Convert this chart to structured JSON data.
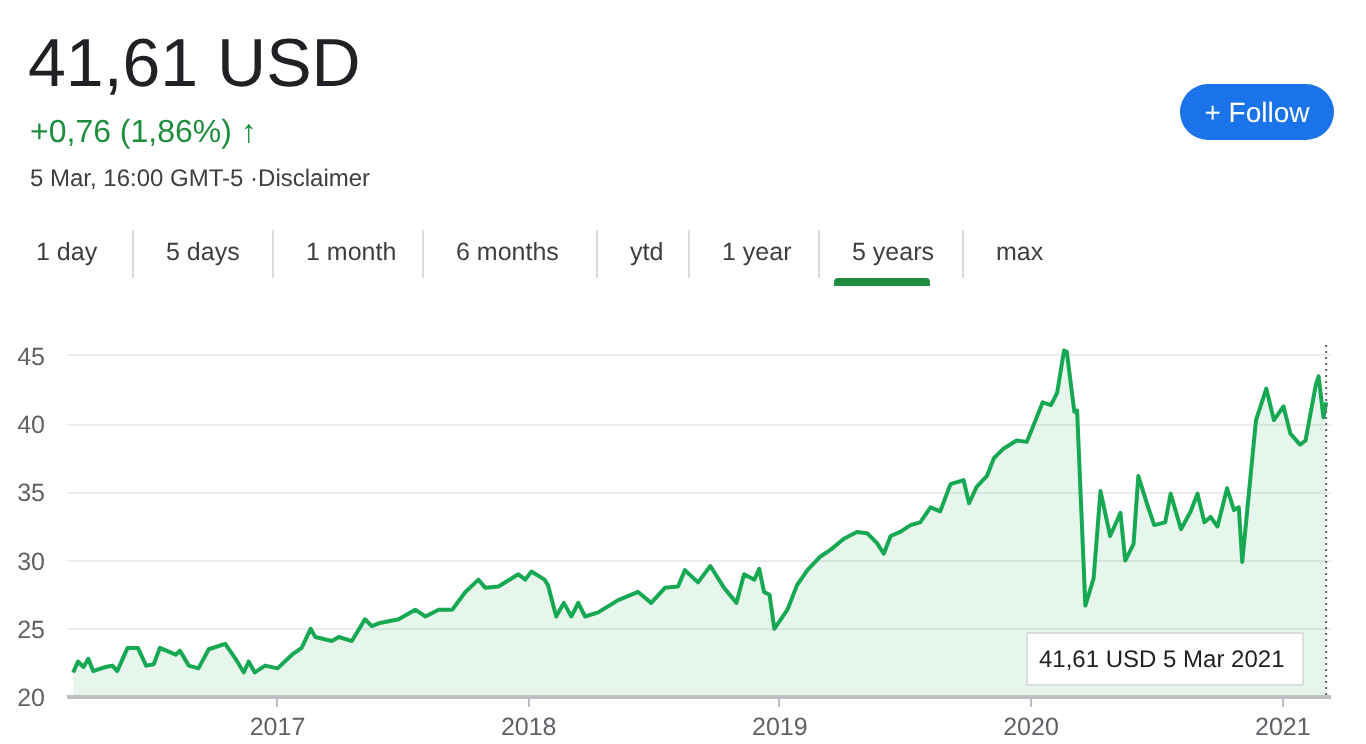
{
  "chart_data": {
    "type": "area",
    "title": "41,61 USD",
    "subtitle": "+0,76 (1,86%) ↑",
    "annotations": [
      "5 Mar, 16:00 GMT-5 ·Disclaimer",
      "+ Follow",
      "1 day",
      "5 days",
      "1 month",
      "6 months",
      "ytd",
      "1 year",
      "5 years",
      "max",
      "41,61 USD  5 Mar 2021"
    ],
    "x": [
      "2016-03-10",
      "2016-03-17",
      "2016-03-25",
      "2016-04-01",
      "2016-04-08",
      "2016-04-26",
      "2016-05-06",
      "2016-05-13",
      "2016-05-28",
      "2016-06-12",
      "2016-06-24",
      "2016-07-05",
      "2016-07-14",
      "2016-08-06",
      "2016-08-12",
      "2016-08-25",
      "2016-09-08",
      "2016-09-23",
      "2016-10-17",
      "2016-11-01",
      "2016-11-13",
      "2016-11-20",
      "2016-11-29",
      "2016-12-14",
      "2017-01-01",
      "2017-01-22",
      "2017-02-05",
      "2017-02-18",
      "2017-02-25",
      "2017-03-21",
      "2017-03-31",
      "2017-04-19",
      "2017-05-08",
      "2017-05-18",
      "2017-05-28",
      "2017-06-26",
      "2017-07-20",
      "2017-08-04",
      "2017-08-23",
      "2017-09-12",
      "2017-10-01",
      "2017-10-20",
      "2017-10-30",
      "2017-11-18",
      "2017-12-17",
      "2017-12-27",
      "2018-01-05",
      "2018-01-24",
      "2018-01-29",
      "2018-02-10",
      "2018-02-21",
      "2018-03-04",
      "2018-03-14",
      "2018-03-24",
      "2018-04-12",
      "2018-05-11",
      "2018-06-09",
      "2018-06-28",
      "2018-07-18",
      "2018-08-06",
      "2018-08-16",
      "2018-09-04",
      "2018-09-22",
      "2018-10-12",
      "2018-10-30",
      "2018-11-10",
      "2018-11-25",
      "2018-12-02",
      "2018-12-09",
      "2018-12-17",
      "2018-12-24",
      "2019-01-12",
      "2019-01-26",
      "2019-02-10",
      "2019-03-01",
      "2019-03-16",
      "2019-04-04",
      "2019-04-23",
      "2019-05-08",
      "2019-05-22",
      "2019-06-01",
      "2019-06-11",
      "2019-06-25",
      "2019-07-10",
      "2019-07-24",
      "2019-08-08",
      "2019-08-22",
      "2019-09-06",
      "2019-09-25",
      "2019-10-03",
      "2019-10-14",
      "2019-10-29",
      "2019-11-08",
      "2019-11-22",
      "2019-12-11",
      "2019-12-26",
      "2020-01-18",
      "2020-01-30",
      "2020-02-08",
      "2020-02-18",
      "2020-02-22",
      "2020-03-04",
      "2020-03-08",
      "2020-03-20",
      "2020-04-01",
      "2020-04-11",
      "2020-04-25",
      "2020-05-10",
      "2020-05-17",
      "2020-05-29",
      "2020-06-05",
      "2020-06-18",
      "2020-06-28",
      "2020-07-14",
      "2020-07-22",
      "2020-08-06",
      "2020-08-20",
      "2020-08-30",
      "2020-09-09",
      "2020-09-18",
      "2020-09-28",
      "2020-10-12",
      "2020-10-22",
      "2020-10-29",
      "2020-11-03",
      "2020-11-23",
      "2020-12-08",
      "2020-12-19",
      "2021-01-02",
      "2021-01-12",
      "2021-01-26",
      "2021-02-03",
      "2021-02-18",
      "2021-02-22",
      "2021-03-01",
      "2021-03-05"
    ],
    "series": [
      {
        "color": "#17a853",
        "values": [
          21.8,
          22.6,
          22.2,
          22.8,
          21.9,
          22.2,
          22.3,
          21.9,
          23.6,
          23.6,
          22.3,
          22.4,
          23.6,
          23.1,
          23.4,
          22.3,
          22.1,
          23.5,
          23.9,
          22.8,
          21.8,
          22.6,
          21.8,
          22.3,
          22.1,
          23.1,
          23.6,
          25.0,
          24.4,
          24.1,
          24.4,
          24.1,
          25.7,
          25.2,
          25.4,
          25.7,
          26.4,
          25.9,
          26.4,
          26.4,
          27.7,
          28.6,
          28.0,
          28.1,
          29.0,
          28.6,
          29.2,
          28.6,
          28.2,
          25.9,
          26.9,
          25.9,
          26.9,
          25.9,
          26.2,
          27.1,
          27.7,
          26.9,
          28.0,
          28.1,
          29.3,
          28.4,
          29.6,
          28.0,
          26.9,
          29.0,
          28.6,
          29.4,
          27.7,
          27.5,
          25.0,
          26.4,
          28.2,
          29.3,
          30.3,
          30.8,
          31.6,
          32.1,
          32.0,
          31.3,
          30.5,
          31.8,
          32.1,
          32.6,
          32.8,
          33.9,
          33.6,
          35.6,
          35.9,
          34.2,
          35.4,
          36.2,
          37.5,
          38.2,
          38.8,
          38.7,
          41.6,
          41.4,
          42.3,
          45.4,
          45.3,
          40.9,
          41.0,
          26.7,
          28.7,
          35.1,
          31.8,
          33.5,
          30.0,
          31.2,
          36.2,
          34.1,
          32.6,
          32.8,
          34.9,
          32.3,
          33.6,
          34.9,
          32.8,
          33.2,
          32.5,
          35.3,
          33.7,
          33.9,
          29.9,
          40.3,
          42.6,
          40.3,
          41.3,
          39.3,
          38.5,
          38.8,
          42.9,
          43.5,
          40.5,
          41.6
        ]
      }
    ],
    "xlim": [
      "2016-03-01",
      "2021-03-12"
    ],
    "ylim": [
      20,
      45.8
    ],
    "xticks": [
      {
        "value": "2017-01-01",
        "label": "2017"
      },
      {
        "value": "2018-01-01",
        "label": "2018"
      },
      {
        "value": "2019-01-01",
        "label": "2019"
      },
      {
        "value": "2020-01-01",
        "label": "2020"
      },
      {
        "value": "2021-01-01",
        "label": "2021"
      }
    ],
    "yticks": [
      20,
      25,
      30,
      35,
      40,
      45
    ],
    "ref_lines": [
      {
        "axis": "x",
        "value": "2021-03-05",
        "line_style": "dotted",
        "color": "#5f6368"
      }
    ],
    "grid": "y"
  }
}
